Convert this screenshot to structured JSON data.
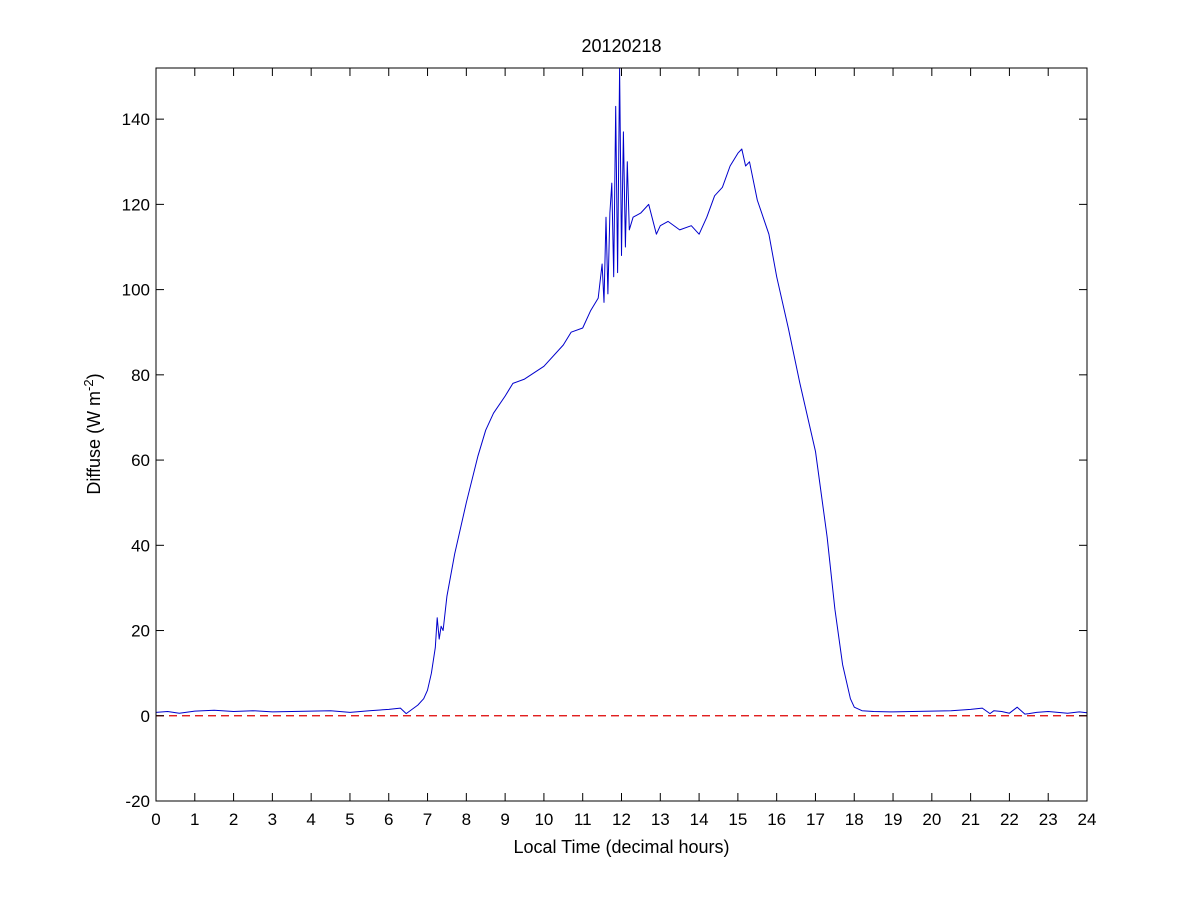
{
  "chart_data": {
    "type": "line",
    "title": "20120218",
    "xlabel": "Local Time (decimal hours)",
    "ylabel": {
      "prefix": "Diffuse (W m",
      "superscript": "-2",
      "suffix": ")"
    },
    "xlim": [
      0,
      24
    ],
    "ylim": [
      -20,
      152
    ],
    "xticks": [
      0,
      1,
      2,
      3,
      4,
      5,
      6,
      7,
      8,
      9,
      10,
      11,
      12,
      13,
      14,
      15,
      16,
      17,
      18,
      19,
      20,
      21,
      22,
      23,
      24
    ],
    "yticks": [
      -20,
      0,
      20,
      40,
      60,
      80,
      100,
      120,
      140
    ],
    "grid": false,
    "legend": "none",
    "colors": {
      "series": "#0000cc",
      "reference": "#dd0000",
      "axes": "#000000"
    },
    "reference_line": {
      "y": 0,
      "style": "dashed"
    },
    "series": [
      {
        "x": [
          0,
          0.3,
          0.6,
          1.0,
          1.5,
          2.0,
          2.5,
          3.0,
          3.5,
          4.0,
          4.5,
          5.0,
          5.5,
          6.0,
          6.3,
          6.45,
          6.6,
          6.75,
          6.9,
          7.0,
          7.1,
          7.2,
          7.25,
          7.3,
          7.35,
          7.4,
          7.5,
          7.7,
          8.0,
          8.3,
          8.5,
          8.7,
          9.0,
          9.2,
          9.5,
          10.0,
          10.5,
          10.7,
          11.0,
          11.2,
          11.4,
          11.5,
          11.55,
          11.6,
          11.65,
          11.7,
          11.75,
          11.8,
          11.85,
          11.9,
          11.95,
          12.0,
          12.05,
          12.1,
          12.15,
          12.2,
          12.3,
          12.5,
          12.7,
          12.9,
          13.0,
          13.2,
          13.5,
          13.8,
          14.0,
          14.2,
          14.4,
          14.6,
          14.8,
          15.0,
          15.1,
          15.2,
          15.3,
          15.5,
          15.8,
          16.0,
          16.3,
          16.6,
          17.0,
          17.3,
          17.5,
          17.7,
          17.9,
          18.0,
          18.2,
          18.5,
          19.0,
          19.5,
          20.0,
          20.5,
          21.0,
          21.3,
          21.5,
          21.6,
          21.8,
          22.0,
          22.2,
          22.4,
          22.5,
          22.7,
          23.0,
          23.5,
          23.8,
          24.0
        ],
        "values": [
          0.8,
          1.0,
          0.6,
          1.1,
          1.3,
          1.0,
          1.2,
          0.9,
          1.0,
          1.1,
          1.2,
          0.8,
          1.2,
          1.5,
          1.8,
          0.5,
          1.5,
          2.5,
          4.0,
          6.0,
          10.0,
          16.0,
          23.0,
          18.0,
          21.0,
          20.0,
          28.0,
          38.0,
          50.0,
          61.0,
          67.0,
          71.0,
          75.0,
          78.0,
          79.0,
          82.0,
          87.0,
          90.0,
          91.0,
          95.0,
          98.0,
          106.0,
          97.0,
          117.0,
          99.0,
          118.0,
          125.0,
          103.0,
          143.0,
          104.0,
          152.0,
          108.0,
          137.0,
          110.0,
          130.0,
          114.0,
          117.0,
          118.0,
          120.0,
          113.0,
          115.0,
          116.0,
          114.0,
          115.0,
          113.0,
          117.0,
          122.0,
          124.0,
          129.0,
          132.0,
          133.0,
          129.0,
          130.0,
          121.0,
          113.0,
          103.0,
          91.0,
          78.0,
          62.0,
          42.0,
          25.0,
          12.0,
          4.0,
          2.0,
          1.2,
          1.0,
          0.9,
          1.0,
          1.1,
          1.2,
          1.5,
          1.8,
          0.5,
          1.2,
          1.0,
          0.6,
          2.0,
          0.4,
          0.5,
          0.8,
          1.0,
          0.6,
          0.9,
          0.7
        ]
      }
    ]
  }
}
